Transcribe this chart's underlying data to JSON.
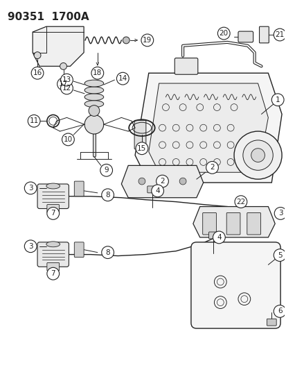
{
  "title": "90351  1700A",
  "bg_color": "#ffffff",
  "lc": "#222222",
  "fig_width": 4.14,
  "fig_height": 5.33,
  "dpi": 100,
  "label_fontsize": 7.5,
  "title_fontsize": 11
}
